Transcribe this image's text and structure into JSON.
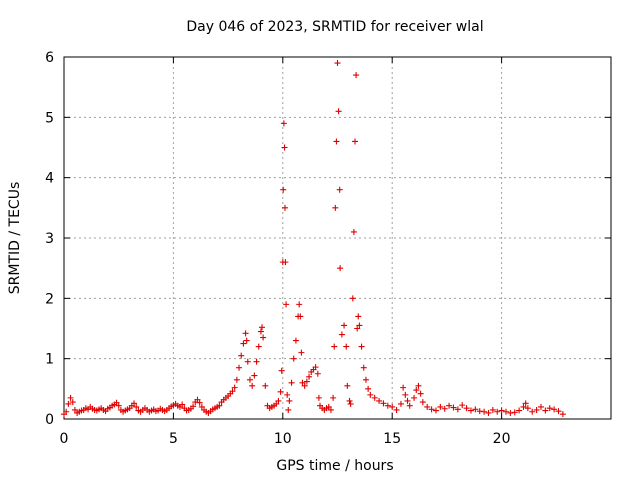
{
  "chart_data": {
    "type": "scatter",
    "title": "Day 046 of 2023, SRMTID for receiver wlal",
    "xlabel": "GPS time / hours",
    "ylabel": "SRMTID / TECUs",
    "xlim": [
      0,
      25
    ],
    "ylim": [
      0,
      6
    ],
    "xticks": [
      0,
      5,
      10,
      15,
      20
    ],
    "yticks": [
      0,
      1,
      2,
      3,
      4,
      5,
      6
    ],
    "grid": true,
    "marker": "+",
    "colors": {
      "series": "#e00000",
      "grid": "#a0a0a0",
      "axis": "#000000"
    },
    "series": [
      {
        "name": "wlal",
        "points": [
          [
            0.0,
            0.08
          ],
          [
            0.1,
            0.12
          ],
          [
            0.2,
            0.25
          ],
          [
            0.3,
            0.35
          ],
          [
            0.4,
            0.28
          ],
          [
            0.5,
            0.15
          ],
          [
            0.6,
            0.1
          ],
          [
            0.7,
            0.12
          ],
          [
            0.8,
            0.14
          ],
          [
            0.9,
            0.15
          ],
          [
            1.0,
            0.18
          ],
          [
            1.1,
            0.16
          ],
          [
            1.2,
            0.2
          ],
          [
            1.3,
            0.17
          ],
          [
            1.4,
            0.15
          ],
          [
            1.5,
            0.14
          ],
          [
            1.6,
            0.16
          ],
          [
            1.7,
            0.18
          ],
          [
            1.8,
            0.15
          ],
          [
            1.9,
            0.13
          ],
          [
            2.0,
            0.17
          ],
          [
            2.1,
            0.19
          ],
          [
            2.2,
            0.22
          ],
          [
            2.3,
            0.24
          ],
          [
            2.4,
            0.27
          ],
          [
            2.5,
            0.22
          ],
          [
            2.6,
            0.15
          ],
          [
            2.7,
            0.12
          ],
          [
            2.8,
            0.14
          ],
          [
            2.9,
            0.16
          ],
          [
            3.0,
            0.18
          ],
          [
            3.1,
            0.22
          ],
          [
            3.2,
            0.26
          ],
          [
            3.3,
            0.2
          ],
          [
            3.4,
            0.14
          ],
          [
            3.5,
            0.12
          ],
          [
            3.6,
            0.15
          ],
          [
            3.7,
            0.18
          ],
          [
            3.8,
            0.15
          ],
          [
            3.9,
            0.12
          ],
          [
            4.0,
            0.14
          ],
          [
            4.1,
            0.16
          ],
          [
            4.2,
            0.13
          ],
          [
            4.3,
            0.14
          ],
          [
            4.4,
            0.17
          ],
          [
            4.5,
            0.15
          ],
          [
            4.6,
            0.13
          ],
          [
            4.7,
            0.15
          ],
          [
            4.8,
            0.18
          ],
          [
            4.9,
            0.21
          ],
          [
            5.0,
            0.23
          ],
          [
            5.1,
            0.25
          ],
          [
            5.2,
            0.22
          ],
          [
            5.3,
            0.2
          ],
          [
            5.4,
            0.24
          ],
          [
            5.5,
            0.18
          ],
          [
            5.6,
            0.14
          ],
          [
            5.7,
            0.15
          ],
          [
            5.8,
            0.17
          ],
          [
            5.9,
            0.21
          ],
          [
            6.0,
            0.28
          ],
          [
            6.1,
            0.32
          ],
          [
            6.2,
            0.27
          ],
          [
            6.3,
            0.2
          ],
          [
            6.4,
            0.15
          ],
          [
            6.5,
            0.12
          ],
          [
            6.6,
            0.1
          ],
          [
            6.7,
            0.13
          ],
          [
            6.8,
            0.16
          ],
          [
            6.9,
            0.18
          ],
          [
            7.0,
            0.2
          ],
          [
            7.1,
            0.22
          ],
          [
            7.2,
            0.28
          ],
          [
            7.3,
            0.32
          ],
          [
            7.4,
            0.35
          ],
          [
            7.5,
            0.38
          ],
          [
            7.6,
            0.42
          ],
          [
            7.7,
            0.46
          ],
          [
            7.8,
            0.52
          ],
          [
            7.9,
            0.65
          ],
          [
            8.0,
            0.85
          ],
          [
            8.1,
            1.05
          ],
          [
            8.2,
            1.25
          ],
          [
            8.3,
            1.42
          ],
          [
            8.35,
            1.3
          ],
          [
            8.4,
            0.95
          ],
          [
            8.5,
            0.65
          ],
          [
            8.6,
            0.55
          ],
          [
            8.7,
            0.72
          ],
          [
            8.8,
            0.95
          ],
          [
            8.9,
            1.2
          ],
          [
            9.0,
            1.45
          ],
          [
            9.05,
            1.52
          ],
          [
            9.1,
            1.35
          ],
          [
            9.2,
            0.55
          ],
          [
            9.3,
            0.22
          ],
          [
            9.4,
            0.18
          ],
          [
            9.5,
            0.2
          ],
          [
            9.6,
            0.22
          ],
          [
            9.7,
            0.25
          ],
          [
            9.8,
            0.3
          ],
          [
            9.9,
            0.45
          ],
          [
            9.95,
            0.8
          ],
          [
            10.0,
            2.6
          ],
          [
            10.02,
            3.8
          ],
          [
            10.05,
            4.9
          ],
          [
            10.08,
            4.5
          ],
          [
            10.1,
            3.5
          ],
          [
            10.12,
            2.6
          ],
          [
            10.15,
            1.9
          ],
          [
            10.2,
            0.4
          ],
          [
            10.25,
            0.15
          ],
          [
            10.3,
            0.3
          ],
          [
            10.4,
            0.6
          ],
          [
            10.5,
            1.0
          ],
          [
            10.6,
            1.3
          ],
          [
            10.7,
            1.7
          ],
          [
            10.75,
            1.9
          ],
          [
            10.8,
            1.7
          ],
          [
            10.85,
            1.1
          ],
          [
            10.9,
            0.6
          ],
          [
            11.0,
            0.55
          ],
          [
            11.1,
            0.62
          ],
          [
            11.2,
            0.7
          ],
          [
            11.3,
            0.78
          ],
          [
            11.4,
            0.82
          ],
          [
            11.5,
            0.86
          ],
          [
            11.6,
            0.75
          ],
          [
            11.65,
            0.35
          ],
          [
            11.7,
            0.22
          ],
          [
            11.8,
            0.18
          ],
          [
            11.9,
            0.15
          ],
          [
            12.0,
            0.18
          ],
          [
            12.1,
            0.2
          ],
          [
            12.2,
            0.15
          ],
          [
            12.3,
            0.35
          ],
          [
            12.35,
            1.2
          ],
          [
            12.4,
            3.5
          ],
          [
            12.45,
            4.6
          ],
          [
            12.5,
            5.9
          ],
          [
            12.55,
            5.1
          ],
          [
            12.6,
            3.8
          ],
          [
            12.62,
            2.5
          ],
          [
            12.7,
            1.4
          ],
          [
            12.8,
            1.55
          ],
          [
            12.9,
            1.2
          ],
          [
            12.95,
            0.55
          ],
          [
            13.05,
            0.3
          ],
          [
            13.1,
            0.25
          ],
          [
            13.2,
            2.0
          ],
          [
            13.25,
            3.1
          ],
          [
            13.3,
            4.6
          ],
          [
            13.35,
            5.7
          ],
          [
            13.4,
            1.5
          ],
          [
            13.45,
            1.7
          ],
          [
            13.5,
            1.55
          ],
          [
            13.6,
            1.2
          ],
          [
            13.7,
            0.85
          ],
          [
            13.8,
            0.65
          ],
          [
            13.9,
            0.5
          ],
          [
            14.0,
            0.4
          ],
          [
            14.2,
            0.35
          ],
          [
            14.4,
            0.3
          ],
          [
            14.6,
            0.26
          ],
          [
            14.8,
            0.22
          ],
          [
            15.0,
            0.2
          ],
          [
            15.2,
            0.15
          ],
          [
            15.4,
            0.25
          ],
          [
            15.5,
            0.52
          ],
          [
            15.6,
            0.4
          ],
          [
            15.7,
            0.3
          ],
          [
            15.8,
            0.22
          ],
          [
            16.0,
            0.35
          ],
          [
            16.1,
            0.48
          ],
          [
            16.2,
            0.55
          ],
          [
            16.3,
            0.42
          ],
          [
            16.4,
            0.28
          ],
          [
            16.6,
            0.2
          ],
          [
            16.8,
            0.16
          ],
          [
            17.0,
            0.14
          ],
          [
            17.2,
            0.2
          ],
          [
            17.4,
            0.17
          ],
          [
            17.6,
            0.22
          ],
          [
            17.8,
            0.19
          ],
          [
            18.0,
            0.16
          ],
          [
            18.2,
            0.23
          ],
          [
            18.4,
            0.18
          ],
          [
            18.6,
            0.14
          ],
          [
            18.8,
            0.16
          ],
          [
            19.0,
            0.13
          ],
          [
            19.2,
            0.12
          ],
          [
            19.4,
            0.1
          ],
          [
            19.6,
            0.15
          ],
          [
            19.8,
            0.12
          ],
          [
            20.0,
            0.14
          ],
          [
            20.2,
            0.12
          ],
          [
            20.4,
            0.1
          ],
          [
            20.6,
            0.11
          ],
          [
            20.8,
            0.14
          ],
          [
            21.0,
            0.2
          ],
          [
            21.1,
            0.26
          ],
          [
            21.2,
            0.18
          ],
          [
            21.4,
            0.12
          ],
          [
            21.6,
            0.15
          ],
          [
            21.8,
            0.2
          ],
          [
            22.0,
            0.14
          ],
          [
            22.2,
            0.18
          ],
          [
            22.4,
            0.16
          ],
          [
            22.6,
            0.13
          ],
          [
            22.8,
            0.08
          ]
        ]
      }
    ]
  }
}
